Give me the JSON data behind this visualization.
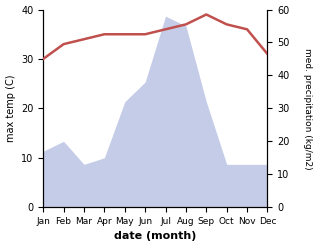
{
  "months": [
    "Jan",
    "Feb",
    "Mar",
    "Apr",
    "May",
    "Jun",
    "Jul",
    "Aug",
    "Sep",
    "Oct",
    "Nov",
    "Dec"
  ],
  "temperature": [
    30,
    33,
    34,
    35,
    35,
    35,
    36,
    37,
    39,
    37,
    36,
    31
  ],
  "precipitation": [
    17,
    20,
    13,
    15,
    32,
    38,
    58,
    55,
    32,
    13,
    13,
    13
  ],
  "temp_color": "#c0504d",
  "precip_color": "#c5cce8",
  "left_ylabel": "max temp (C)",
  "right_ylabel": "med. precipitation (kg/m2)",
  "xlabel": "date (month)",
  "ylim_left": [
    0,
    40
  ],
  "ylim_right": [
    0,
    60
  ],
  "yticks_left": [
    0,
    10,
    20,
    30,
    40
  ],
  "yticks_right": [
    0,
    10,
    20,
    30,
    40,
    50,
    60
  ],
  "temp_linewidth": 1.8
}
